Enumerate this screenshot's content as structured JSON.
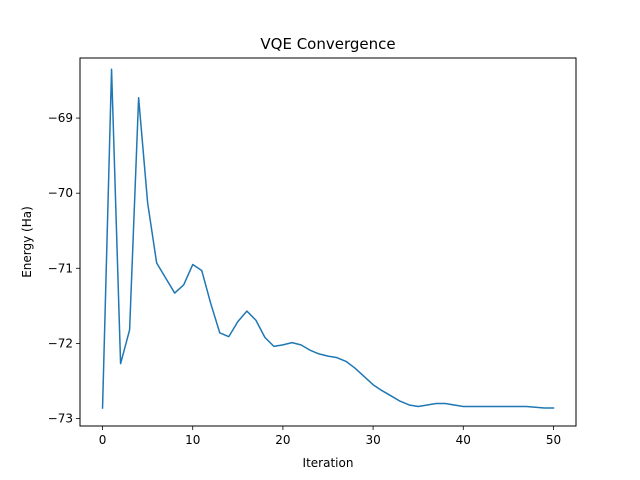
{
  "chart_data": {
    "type": "line",
    "title": "VQE Convergence",
    "xlabel": "Iteration",
    "ylabel": "Energy (Ha)",
    "xlim": [
      -2.5,
      52.5
    ],
    "ylim": [
      -73.1,
      -68.2
    ],
    "x_ticks": [
      0,
      10,
      20,
      30,
      40,
      50
    ],
    "y_ticks": [
      -73,
      -72,
      -71,
      -70,
      -69
    ],
    "y_tick_labels": [
      "−73",
      "−72",
      "−71",
      "−70",
      "−69"
    ],
    "grid": false,
    "legend": "none",
    "series": [
      {
        "color": "#1f77b4",
        "x": [
          0,
          1,
          2,
          3,
          4,
          5,
          6,
          7,
          8,
          9,
          10,
          11,
          12,
          13,
          14,
          15,
          16,
          17,
          18,
          19,
          20,
          21,
          22,
          23,
          24,
          25,
          26,
          27,
          28,
          29,
          30,
          31,
          32,
          33,
          34,
          35,
          36,
          37,
          38,
          39,
          40,
          41,
          42,
          43,
          44,
          45,
          46,
          47,
          48,
          49,
          50
        ],
        "y": [
          -72.86,
          -68.35,
          -72.27,
          -71.82,
          -68.73,
          -70.13,
          -70.93,
          -71.13,
          -71.33,
          -71.22,
          -70.95,
          -71.03,
          -71.47,
          -71.86,
          -71.91,
          -71.71,
          -71.57,
          -71.69,
          -71.92,
          -72.04,
          -72.02,
          -71.99,
          -72.02,
          -72.09,
          -72.14,
          -72.17,
          -72.19,
          -72.24,
          -72.33,
          -72.44,
          -72.55,
          -72.63,
          -72.7,
          -72.77,
          -72.82,
          -72.84,
          -72.82,
          -72.8,
          -72.8,
          -72.82,
          -72.84,
          -72.84,
          -72.84,
          -72.84,
          -72.84,
          -72.84,
          -72.84,
          -72.84,
          -72.85,
          -72.86,
          -72.86
        ]
      }
    ]
  }
}
